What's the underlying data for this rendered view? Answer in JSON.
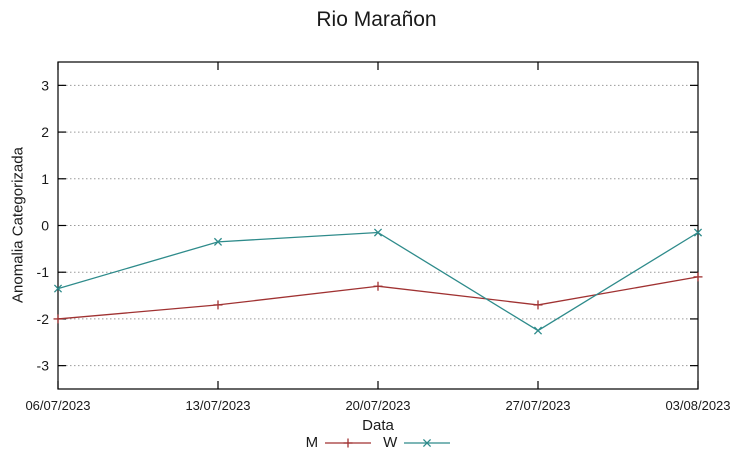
{
  "chart_data": {
    "type": "line",
    "title": "Rio Marañon",
    "xlabel": "Data",
    "ylabel": "Anomalia Categorizada",
    "x": [
      "06/07/2023",
      "13/07/2023",
      "20/07/2023",
      "27/07/2023",
      "03/08/2023"
    ],
    "yticks": [
      3,
      2,
      1,
      0,
      -1,
      -2,
      -3
    ],
    "ylim": [
      -3.5,
      3.5
    ],
    "grid": "horizontal-dotted",
    "legend_position": "bottom-center",
    "colors": {
      "axis": "#000000",
      "grid": "#9a9a9a",
      "text": "#1a1a1a"
    },
    "series": [
      {
        "name": "M",
        "color": "#a03232",
        "marker": "plus",
        "values": [
          -2.0,
          -1.7,
          -1.3,
          -1.7,
          -1.1
        ]
      },
      {
        "name": "W",
        "color": "#2e8b8b",
        "marker": "cross",
        "values": [
          -1.35,
          -0.35,
          -0.15,
          -2.25,
          -0.15
        ]
      }
    ]
  }
}
